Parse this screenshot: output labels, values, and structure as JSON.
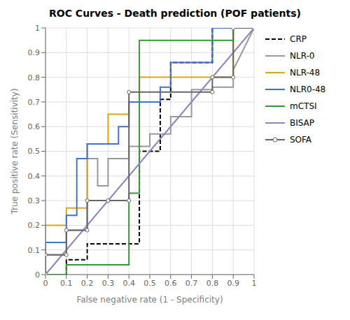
{
  "chart_data": {
    "type": "line",
    "title": "ROC Curves - Death prediction (POF patients)",
    "x_label": "False negative rate (1 - Specificity)",
    "y_label": "True positive rate (Sensitivity)",
    "xlim": [
      0,
      1
    ],
    "ylim": [
      0,
      1
    ],
    "xticks": [
      0,
      0.1,
      0.2,
      0.3,
      0.4,
      0.5,
      0.6,
      0.7,
      0.8,
      0.9,
      1
    ],
    "yticks": [
      0,
      0.1,
      0.2,
      0.3,
      0.4,
      0.5,
      0.6,
      0.7,
      0.8,
      0.9,
      1
    ],
    "grid": true,
    "legend": "right",
    "series": [
      {
        "color": "#CC6633",
        "line_style": "solid",
        "x": [
          0,
          1
        ],
        "values": [
          0,
          1
        ]
      },
      {
        "name": "CRP",
        "color": "#000000",
        "line_style": "dashed",
        "x": [
          0,
          0.1,
          0.1,
          0.2,
          0.2,
          0.45,
          0.45,
          0.55,
          0.55,
          0.6,
          0.6,
          0.8,
          0.8,
          1.0
        ],
        "values": [
          0,
          0.0,
          0.06,
          0.06,
          0.125,
          0.125,
          0.5,
          0.5,
          0.71,
          0.71,
          0.86,
          0.86,
          1.0,
          1.0
        ]
      },
      {
        "name": "NLR-0",
        "color": "#999999",
        "line_style": "solid",
        "x": [
          0,
          0.0,
          0.1,
          0.1,
          0.2,
          0.2,
          0.25,
          0.25,
          0.3,
          0.3,
          0.4,
          0.4,
          0.5,
          0.5,
          0.6,
          0.6,
          0.7,
          0.7,
          0.8,
          0.8,
          0.9,
          0.9,
          1.0
        ],
        "values": [
          0,
          0.08,
          0.08,
          0.18,
          0.18,
          0.47,
          0.47,
          0.36,
          0.36,
          0.47,
          0.47,
          0.52,
          0.52,
          0.57,
          0.57,
          0.64,
          0.64,
          0.75,
          0.75,
          0.76,
          0.76,
          0.83,
          1.0
        ]
      },
      {
        "name": "NLR-48",
        "color": "#DAA520",
        "line_style": "solid",
        "x": [
          0,
          0.0,
          0.1,
          0.1,
          0.2,
          0.2,
          0.3,
          0.3,
          0.4,
          0.4,
          0.45,
          0.45,
          0.9,
          0.9,
          1.0
        ],
        "values": [
          0,
          0.2,
          0.2,
          0.27,
          0.27,
          0.53,
          0.53,
          0.65,
          0.65,
          0.7,
          0.7,
          0.8,
          0.8,
          1.0,
          1.0
        ]
      },
      {
        "name": "NLR0-48",
        "color": "#4472C4",
        "line_style": "solid",
        "x": [
          0,
          0.0,
          0.1,
          0.1,
          0.15,
          0.15,
          0.2,
          0.2,
          0.35,
          0.35,
          0.4,
          0.4,
          0.55,
          0.55,
          0.6,
          0.6,
          0.8,
          0.8,
          1.0
        ],
        "values": [
          0,
          0.13,
          0.13,
          0.24,
          0.24,
          0.47,
          0.47,
          0.53,
          0.53,
          0.6,
          0.6,
          0.7,
          0.7,
          0.76,
          0.76,
          0.86,
          0.86,
          1.0,
          1.0
        ]
      },
      {
        "name": "mCTSI",
        "color": "#339933",
        "line_style": "solid",
        "x": [
          0,
          0.1,
          0.1,
          0.2,
          0.2,
          0.4,
          0.4,
          0.45,
          0.45,
          0.9,
          0.9,
          1.0
        ],
        "values": [
          0,
          0.0,
          0.04,
          0.04,
          0.04,
          0.04,
          0.33,
          0.33,
          0.95,
          0.95,
          1.0,
          1.0
        ]
      },
      {
        "name": "BISAP",
        "color": "#8888CC",
        "line_style": "solid",
        "x": [
          0,
          1.0
        ],
        "values": [
          0,
          1.0
        ]
      },
      {
        "name": "SOFA",
        "color": "#666666",
        "line_style": "solid",
        "marker": "circle",
        "x": [
          0,
          0.0,
          0.1,
          0.1,
          0.2,
          0.2,
          0.3,
          0.3,
          0.4,
          0.4,
          0.8,
          0.8,
          0.9,
          0.9,
          1.0
        ],
        "values": [
          0,
          0.08,
          0.08,
          0.18,
          0.18,
          0.3,
          0.3,
          0.3,
          0.3,
          0.74,
          0.74,
          0.8,
          0.8,
          1.0,
          1.0
        ]
      }
    ]
  }
}
